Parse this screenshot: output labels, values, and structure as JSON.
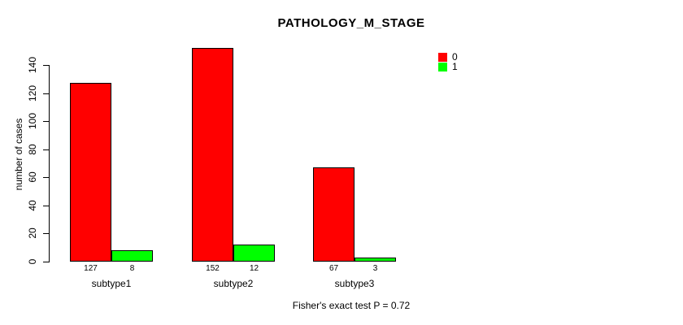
{
  "chart_data": {
    "type": "bar",
    "title": "PATHOLOGY_M_STAGE",
    "xlabel": "",
    "ylabel": "number of cases",
    "categories": [
      "subtype1",
      "subtype2",
      "subtype3"
    ],
    "series": [
      {
        "name": "0",
        "color": "#ff0000",
        "values": [
          127,
          152,
          67
        ]
      },
      {
        "name": "1",
        "color": "#00ff00",
        "values": [
          8,
          12,
          3
        ]
      }
    ],
    "yticks": [
      0,
      20,
      40,
      60,
      80,
      100,
      120,
      140
    ],
    "ylim": [
      0,
      140
    ],
    "grid": false,
    "bar_border_color": "#000000",
    "legend_position": "top-right",
    "value_labels_shown": true,
    "annotation": "Fisher's exact test P = 0.72"
  }
}
